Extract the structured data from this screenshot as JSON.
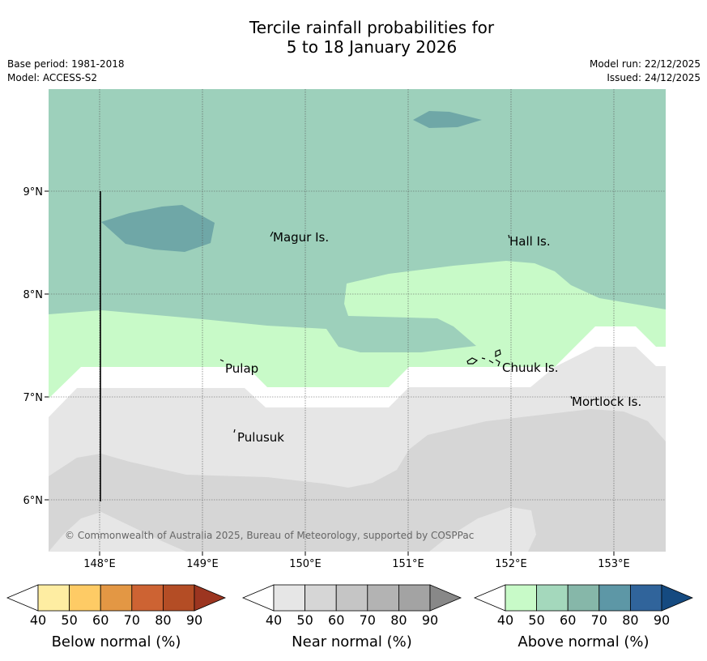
{
  "title": {
    "line1": "Tercile rainfall probabilities for",
    "line2": "5 to 18 January 2026"
  },
  "meta": {
    "base_period": "Base period: 1981-2018",
    "model": "Model: ACCESS-S2",
    "model_run": "Model run: 22/12/2025",
    "issued": "Issued: 24/12/2025"
  },
  "map": {
    "lat_labels": [
      "9°N",
      "8°N",
      "7°N",
      "6°N"
    ],
    "lon_labels": [
      "148°E",
      "149°E",
      "150°E",
      "151°E",
      "152°E",
      "153°E"
    ],
    "places": [
      "Magur Is.",
      "Hall Is.",
      "Pulap",
      "Chuuk Is.",
      "Mortlock Is.",
      "Pulusuk"
    ],
    "copyright": "© Commonwealth of Australia 2025, Bureau of Meteorology, supported by COSPPac"
  },
  "legends": [
    {
      "title": "Below normal (%)",
      "ticks": [
        "40",
        "50",
        "60",
        "70",
        "80",
        "90"
      ],
      "colors": [
        "#ffffff",
        "#feeda2",
        "#fecb65",
        "#e39744",
        "#cd6333",
        "#b44d25",
        "#9c3520"
      ]
    },
    {
      "title": "Near normal (%)",
      "ticks": [
        "40",
        "50",
        "60",
        "70",
        "80",
        "90"
      ],
      "colors": [
        "#ffffff",
        "#e6e6e6",
        "#d6d6d6",
        "#c5c5c5",
        "#b3b3b3",
        "#a3a3a3",
        "#888888"
      ]
    },
    {
      "title": "Above normal (%)",
      "ticks": [
        "40",
        "50",
        "60",
        "70",
        "80",
        "90"
      ],
      "colors": [
        "#ffffff",
        "#c8fac8",
        "#a4d8bc",
        "#86b7a9",
        "#5d97a6",
        "#30649b",
        "#154a80"
      ]
    }
  ]
}
